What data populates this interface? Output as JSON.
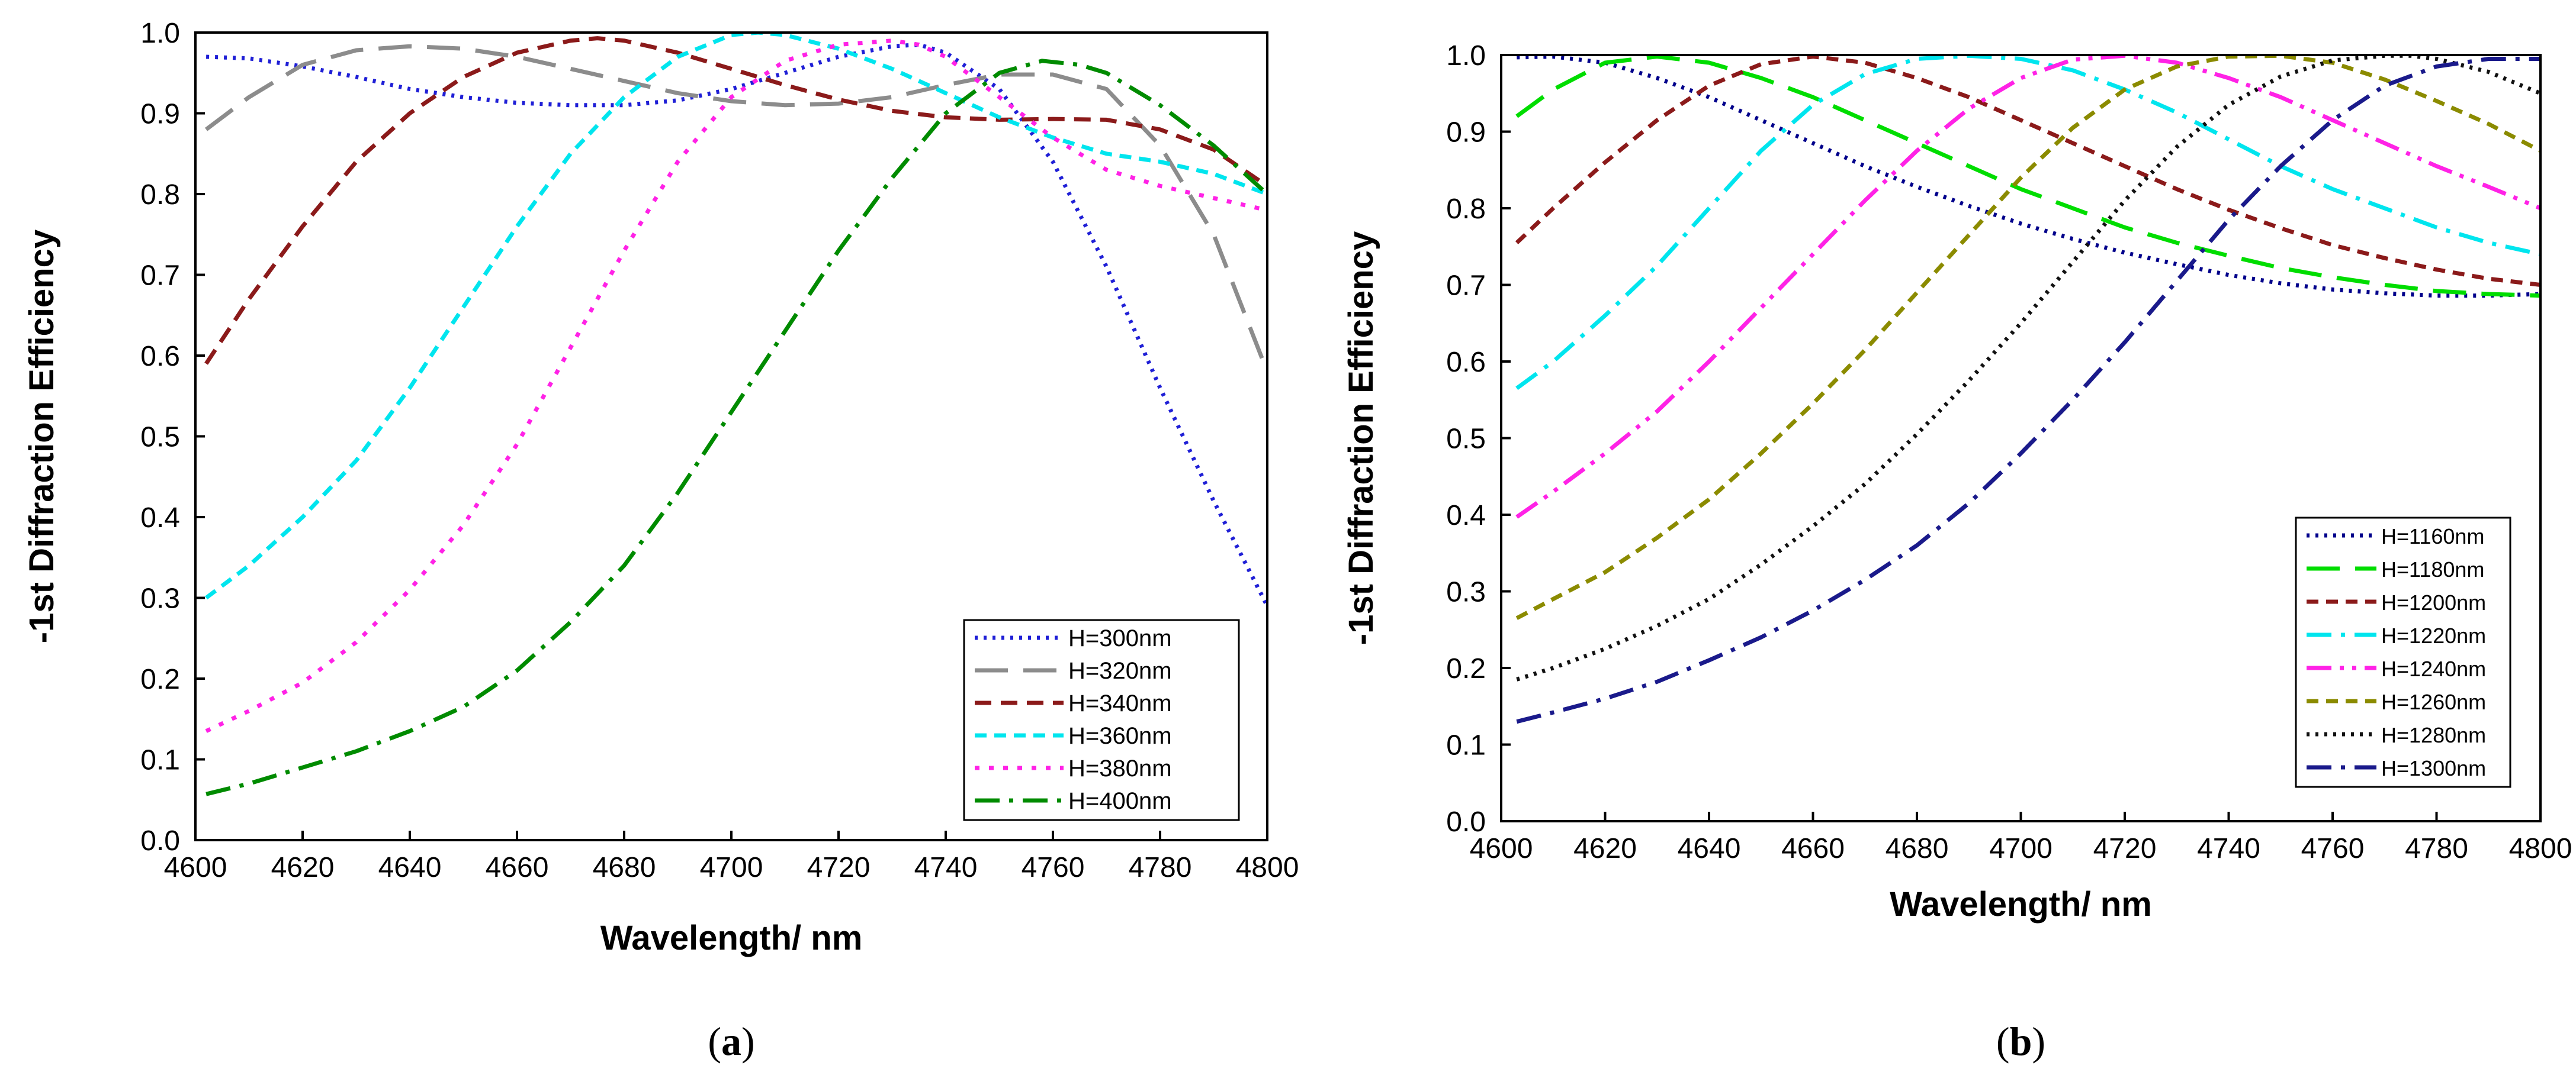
{
  "chart_data": [
    {
      "type": "line",
      "panel_label": "a",
      "title": "",
      "xlabel": "Wavelength/ nm",
      "ylabel": "-1st Diffraction Efficiency",
      "xlim": [
        4600,
        4800
      ],
      "ylim": [
        0.0,
        1.0
      ],
      "x_ticks": [
        "4600",
        "4620",
        "4640",
        "4660",
        "4680",
        "4700",
        "4720",
        "4740",
        "4760",
        "4780",
        "4800"
      ],
      "y_ticks": [
        "0.0",
        "0.1",
        "0.2",
        "0.3",
        "0.4",
        "0.5",
        "0.6",
        "0.7",
        "0.8",
        "0.9",
        "1.0"
      ],
      "legend_position": "bottom-right",
      "grid": false,
      "series": [
        {
          "name": "H=300nm",
          "color": "#1f1fd6",
          "dash": "dot",
          "x": [
            4602,
            4610,
            4620,
            4630,
            4640,
            4650,
            4660,
            4670,
            4680,
            4690,
            4700,
            4710,
            4720,
            4730,
            4735,
            4740,
            4750,
            4760,
            4770,
            4780,
            4790,
            4800
          ],
          "y": [
            0.97,
            0.968,
            0.958,
            0.945,
            0.93,
            0.92,
            0.913,
            0.91,
            0.91,
            0.916,
            0.93,
            0.95,
            0.97,
            0.983,
            0.985,
            0.975,
            0.93,
            0.84,
            0.71,
            0.56,
            0.42,
            0.29
          ]
        },
        {
          "name": "H=320nm",
          "color": "#8c8c8c",
          "dash": "long-dash",
          "x": [
            4602,
            4610,
            4620,
            4630,
            4640,
            4650,
            4660,
            4670,
            4680,
            4690,
            4700,
            4710,
            4720,
            4730,
            4740,
            4750,
            4760,
            4770,
            4780,
            4790,
            4800
          ],
          "y": [
            0.88,
            0.92,
            0.96,
            0.978,
            0.983,
            0.98,
            0.97,
            0.955,
            0.94,
            0.925,
            0.915,
            0.91,
            0.912,
            0.92,
            0.935,
            0.948,
            0.948,
            0.93,
            0.86,
            0.75,
            0.58
          ]
        },
        {
          "name": "H=340nm",
          "color": "#8b1a1a",
          "dash": "dash",
          "x": [
            4602,
            4610,
            4620,
            4630,
            4640,
            4650,
            4660,
            4670,
            4675,
            4680,
            4690,
            4700,
            4710,
            4720,
            4730,
            4740,
            4750,
            4760,
            4770,
            4780,
            4790,
            4800
          ],
          "y": [
            0.59,
            0.67,
            0.76,
            0.84,
            0.9,
            0.945,
            0.975,
            0.99,
            0.993,
            0.99,
            0.975,
            0.955,
            0.935,
            0.917,
            0.903,
            0.895,
            0.892,
            0.893,
            0.892,
            0.88,
            0.855,
            0.81
          ]
        },
        {
          "name": "H=360nm",
          "color": "#00e5ee",
          "dash": "short-dash",
          "x": [
            4602,
            4610,
            4620,
            4630,
            4640,
            4650,
            4660,
            4670,
            4680,
            4690,
            4700,
            4705,
            4710,
            4720,
            4730,
            4740,
            4750,
            4760,
            4770,
            4780,
            4790,
            4800
          ],
          "y": [
            0.3,
            0.34,
            0.4,
            0.47,
            0.56,
            0.66,
            0.76,
            0.85,
            0.92,
            0.97,
            0.997,
            1.0,
            0.997,
            0.98,
            0.955,
            0.925,
            0.895,
            0.87,
            0.85,
            0.84,
            0.825,
            0.8
          ]
        },
        {
          "name": "H=380nm",
          "color": "#ff22e6",
          "dash": "dot-sparse",
          "x": [
            4602,
            4610,
            4620,
            4630,
            4640,
            4650,
            4660,
            4670,
            4680,
            4690,
            4700,
            4710,
            4720,
            4730,
            4735,
            4740,
            4750,
            4760,
            4770,
            4780,
            4790,
            4800
          ],
          "y": [
            0.135,
            0.16,
            0.195,
            0.245,
            0.31,
            0.39,
            0.49,
            0.61,
            0.73,
            0.84,
            0.92,
            0.965,
            0.985,
            0.99,
            0.985,
            0.97,
            0.92,
            0.87,
            0.83,
            0.81,
            0.795,
            0.78
          ]
        },
        {
          "name": "H=400nm",
          "color": "#008b00",
          "dash": "dash-dot",
          "x": [
            4602,
            4610,
            4620,
            4630,
            4640,
            4650,
            4660,
            4670,
            4680,
            4690,
            4700,
            4710,
            4720,
            4730,
            4740,
            4750,
            4758,
            4765,
            4770,
            4780,
            4790,
            4800
          ],
          "y": [
            0.057,
            0.07,
            0.09,
            0.11,
            0.135,
            0.165,
            0.21,
            0.27,
            0.34,
            0.43,
            0.53,
            0.63,
            0.73,
            0.82,
            0.9,
            0.95,
            0.965,
            0.96,
            0.95,
            0.91,
            0.86,
            0.8
          ]
        }
      ]
    },
    {
      "type": "line",
      "panel_label": "b",
      "title": "",
      "xlabel": "Wavelength/ nm",
      "ylabel": "-1st Diffraction Efficiency",
      "xlim": [
        4600,
        4800
      ],
      "ylim": [
        0.0,
        1.0
      ],
      "x_ticks": [
        "4600",
        "4620",
        "4640",
        "4660",
        "4680",
        "4700",
        "4720",
        "4740",
        "4760",
        "4780",
        "4800"
      ],
      "y_ticks": [
        "0.0",
        "0.1",
        "0.2",
        "0.3",
        "0.4",
        "0.5",
        "0.6",
        "0.7",
        "0.8",
        "0.9",
        "1.0"
      ],
      "legend_position": "bottom-right",
      "grid": false,
      "series": [
        {
          "name": "H=1160nm",
          "color": "#00008b",
          "dash": "dot",
          "x": [
            4603,
            4610,
            4620,
            4630,
            4640,
            4650,
            4660,
            4670,
            4680,
            4690,
            4700,
            4710,
            4720,
            4730,
            4740,
            4750,
            4760,
            4770,
            4780,
            4790,
            4800
          ],
          "y": [
            0.997,
            0.998,
            0.99,
            0.97,
            0.945,
            0.915,
            0.885,
            0.855,
            0.828,
            0.803,
            0.78,
            0.76,
            0.742,
            0.727,
            0.713,
            0.702,
            0.694,
            0.689,
            0.686,
            0.686,
            0.688
          ]
        },
        {
          "name": "H=1180nm",
          "color": "#00dd00",
          "dash": "long-dash",
          "x": [
            4603,
            4610,
            4620,
            4630,
            4640,
            4650,
            4660,
            4670,
            4680,
            4690,
            4700,
            4710,
            4720,
            4730,
            4740,
            4750,
            4760,
            4770,
            4780,
            4790,
            4800
          ],
          "y": [
            0.92,
            0.955,
            0.99,
            0.998,
            0.99,
            0.97,
            0.945,
            0.915,
            0.885,
            0.855,
            0.825,
            0.8,
            0.775,
            0.755,
            0.738,
            0.722,
            0.71,
            0.7,
            0.692,
            0.688,
            0.686
          ]
        },
        {
          "name": "H=1200nm",
          "color": "#8b1a1a",
          "dash": "short-dash",
          "x": [
            4603,
            4610,
            4620,
            4630,
            4640,
            4650,
            4660,
            4670,
            4680,
            4690,
            4700,
            4710,
            4720,
            4730,
            4740,
            4750,
            4760,
            4770,
            4780,
            4790,
            4800
          ],
          "y": [
            0.755,
            0.8,
            0.86,
            0.915,
            0.96,
            0.988,
            0.998,
            0.99,
            0.97,
            0.945,
            0.915,
            0.885,
            0.855,
            0.825,
            0.798,
            0.774,
            0.752,
            0.735,
            0.72,
            0.708,
            0.7
          ]
        },
        {
          "name": "H=1220nm",
          "color": "#00e5ee",
          "dash": "dash-dot",
          "x": [
            4603,
            4610,
            4620,
            4630,
            4640,
            4650,
            4660,
            4670,
            4680,
            4690,
            4700,
            4710,
            4720,
            4730,
            4740,
            4750,
            4760,
            4770,
            4780,
            4790,
            4800
          ],
          "y": [
            0.565,
            0.6,
            0.66,
            0.725,
            0.8,
            0.875,
            0.935,
            0.975,
            0.995,
            0.999,
            0.995,
            0.98,
            0.955,
            0.925,
            0.89,
            0.855,
            0.825,
            0.8,
            0.775,
            0.755,
            0.74
          ]
        },
        {
          "name": "H=1240nm",
          "color": "#ff22e6",
          "dash": "dash-dot-dot",
          "x": [
            4603,
            4610,
            4620,
            4630,
            4640,
            4650,
            4660,
            4670,
            4680,
            4690,
            4700,
            4710,
            4720,
            4730,
            4740,
            4750,
            4760,
            4770,
            4780,
            4790,
            4800
          ],
          "y": [
            0.397,
            0.43,
            0.48,
            0.535,
            0.6,
            0.67,
            0.74,
            0.81,
            0.875,
            0.93,
            0.97,
            0.994,
            0.999,
            0.99,
            0.97,
            0.945,
            0.915,
            0.885,
            0.855,
            0.828,
            0.8
          ]
        },
        {
          "name": "H=1260nm",
          "color": "#8b8b00",
          "dash": "short-dash",
          "x": [
            4603,
            4610,
            4620,
            4630,
            4640,
            4650,
            4660,
            4670,
            4680,
            4690,
            4700,
            4710,
            4720,
            4730,
            4740,
            4750,
            4760,
            4770,
            4780,
            4790,
            4800
          ],
          "y": [
            0.265,
            0.29,
            0.325,
            0.37,
            0.42,
            0.48,
            0.545,
            0.615,
            0.69,
            0.765,
            0.84,
            0.905,
            0.955,
            0.985,
            0.998,
            0.999,
            0.99,
            0.968,
            0.94,
            0.91,
            0.875
          ]
        },
        {
          "name": "H=1280nm",
          "color": "#111111",
          "dash": "dot",
          "x": [
            4603,
            4610,
            4620,
            4630,
            4640,
            4650,
            4660,
            4670,
            4680,
            4690,
            4700,
            4710,
            4720,
            4730,
            4740,
            4750,
            4760,
            4770,
            4775,
            4780,
            4790,
            4800
          ],
          "y": [
            0.185,
            0.2,
            0.225,
            0.255,
            0.29,
            0.335,
            0.385,
            0.44,
            0.505,
            0.575,
            0.65,
            0.73,
            0.81,
            0.88,
            0.935,
            0.972,
            0.993,
            0.999,
            0.999,
            0.995,
            0.978,
            0.95
          ]
        },
        {
          "name": "H=1300nm",
          "color": "#1a1a8b",
          "dash": "dash-dot",
          "x": [
            4603,
            4610,
            4620,
            4630,
            4640,
            4650,
            4660,
            4670,
            4680,
            4690,
            4700,
            4710,
            4720,
            4730,
            4740,
            4750,
            4760,
            4770,
            4780,
            4790,
            4800
          ],
          "y": [
            0.13,
            0.142,
            0.16,
            0.182,
            0.21,
            0.24,
            0.275,
            0.315,
            0.36,
            0.415,
            0.48,
            0.55,
            0.625,
            0.705,
            0.785,
            0.855,
            0.915,
            0.96,
            0.985,
            0.995,
            0.995
          ]
        }
      ]
    }
  ]
}
